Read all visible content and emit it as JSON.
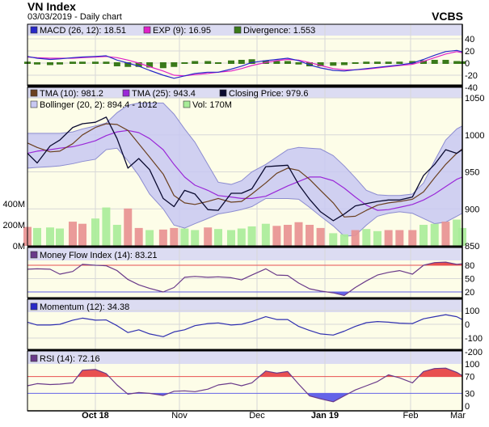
{
  "header": {
    "title": "VN Index",
    "subtitle": "03/03/2019 - Daily chart",
    "brand": "VCBS"
  },
  "colors": {
    "header_band": "#dcdcf2",
    "plot_bg": "#fdfde8",
    "macd": "#2828c8",
    "exp": "#e020c8",
    "divergence": "#3a7a1a",
    "tma10": "#6b4020",
    "tma25": "#9a28d8",
    "close": "#0a0a30",
    "bollinger_fill": "#c8c8f2",
    "bollinger_line": "#8c8cd0",
    "vol_up": "#a8ec98",
    "vol_down": "#e89090",
    "overbought": "#e85050",
    "oversold": "#6464e8",
    "indicator_line": "#6a3a8a",
    "momentum": "#3030b0"
  },
  "legends": {
    "macd": [
      "MACD (26, 12): 18.51",
      "EXP (9): 16.95",
      "Divergence: 1.553"
    ],
    "main_row1": [
      "TMA (10): 981.2",
      "TMA (25): 943.4",
      "Closing Price: 979.6"
    ],
    "main_row2": [
      "Bollinger (20, 2): 894.4 - 1012",
      "Vol: 170M"
    ],
    "mfi": "Money Flow Index (14): 83.21",
    "momentum": "Momentum (12): 34.38",
    "rsi": "RSI (14): 72.16"
  },
  "axes": {
    "macd_ticks": [
      "40",
      "20",
      "0",
      "-20",
      "-40"
    ],
    "price_ticks": [
      "1050",
      "1000",
      "950",
      "900",
      "850"
    ],
    "volume_ticks": [
      "400M",
      "200M",
      "0M"
    ],
    "mfi_ticks": [
      "80",
      "50",
      "20"
    ],
    "momentum_ticks": [
      "100",
      "0",
      "-100",
      "-200"
    ],
    "rsi_ticks": [
      "100",
      "70",
      "30",
      "0"
    ],
    "x_labels": [
      "Oct 18",
      "Nov",
      "Dec",
      "Jan 19",
      "Feb",
      "Mar"
    ]
  },
  "chart_data": {
    "type": "line",
    "dates": [
      "2018-09-10",
      "2018-09-13",
      "2018-09-17",
      "2018-09-20",
      "2018-09-24",
      "2018-09-27",
      "2018-10-01",
      "2018-10-05",
      "2018-10-09",
      "2018-10-13",
      "2018-10-17",
      "2018-10-21",
      "2018-10-26",
      "2018-10-30",
      "2018-11-03",
      "2018-11-07",
      "2018-11-12",
      "2018-11-16",
      "2018-11-21",
      "2018-11-25",
      "2018-11-29",
      "2018-12-05",
      "2018-12-10",
      "2018-12-15",
      "2018-12-20",
      "2018-12-25",
      "2018-12-30",
      "2019-01-04",
      "2019-01-08",
      "2019-01-12",
      "2019-01-16",
      "2019-01-20",
      "2019-01-24",
      "2019-01-28",
      "2019-02-02",
      "2019-02-08",
      "2019-02-14",
      "2019-02-20",
      "2019-02-26",
      "2019-03-01"
    ],
    "x_ticks": [
      "2018-10-01",
      "2018-11-01",
      "2018-12-01",
      "2019-01-01",
      "2019-02-01",
      "2019-03-01"
    ],
    "price": {
      "range": [
        850,
        1050
      ],
      "close": [
        975,
        962,
        985,
        993,
        1010,
        1015,
        1017,
        1024,
        995,
        955,
        968,
        953,
        914,
        903,
        925,
        920,
        899,
        898,
        921,
        921,
        927,
        957,
        958,
        959,
        933,
        913,
        896,
        884,
        893,
        904,
        907,
        910,
        912,
        912,
        916,
        945,
        960,
        980,
        975,
        980
      ],
      "tma10": [
        989,
        983,
        977,
        978,
        988,
        1000,
        1010,
        1015,
        1014,
        1006,
        988,
        970,
        947,
        918,
        908,
        906,
        910,
        914,
        909,
        910,
        920,
        935,
        948,
        955,
        952,
        940,
        925,
        908,
        889,
        890,
        898,
        905,
        908,
        910,
        913,
        923,
        942,
        960,
        975,
        981
      ],
      "tma25": [
        975,
        978,
        980,
        982,
        984,
        987,
        992,
        999,
        1004,
        1006,
        1003,
        995,
        980,
        960,
        943,
        932,
        925,
        918,
        916,
        914,
        914,
        917,
        924,
        931,
        937,
        943,
        943,
        938,
        928,
        916,
        905,
        898,
        899,
        902,
        906,
        912,
        920,
        930,
        940,
        943
      ],
      "bollinger_upper": [
        1002,
        1002,
        1002,
        1002,
        1004,
        1008,
        1012,
        1016,
        1030,
        1040,
        1043,
        1043,
        1043,
        1028,
        1008,
        990,
        960,
        936,
        933,
        938,
        950,
        960,
        970,
        980,
        983,
        982,
        981,
        972,
        958,
        942,
        925,
        919,
        918,
        918,
        920,
        935,
        965,
        993,
        1008,
        1012
      ],
      "bollinger_lower": [
        955,
        956,
        957,
        958,
        961,
        964,
        967,
        980,
        982,
        965,
        945,
        920,
        900,
        878,
        874,
        880,
        887,
        893,
        896,
        899,
        903,
        914,
        914,
        914,
        913,
        902,
        890,
        877,
        863,
        864,
        878,
        890,
        894,
        896,
        894,
        887,
        880,
        882,
        890,
        894
      ]
    },
    "volume": {
      "unit": "M",
      "values": [
        180,
        170,
        175,
        165,
        230,
        210,
        260,
        365,
        200,
        355,
        170,
        150,
        155,
        170,
        165,
        150,
        175,
        160,
        150,
        165,
        185,
        210,
        190,
        200,
        225,
        200,
        170,
        120,
        110,
        150,
        160,
        140,
        150,
        150,
        150,
        200,
        210,
        230,
        250,
        170
      ],
      "direction": [
        "down",
        "up",
        "up",
        "up",
        "down",
        "down",
        "up",
        "up",
        "up",
        "down",
        "down",
        "up",
        "down",
        "down",
        "up",
        "up",
        "down",
        "up",
        "up",
        "up",
        "up",
        "up",
        "down",
        "down",
        "down",
        "down",
        "down",
        "up",
        "up",
        "down",
        "up",
        "up",
        "down",
        "down",
        "down",
        "up",
        "up",
        "down",
        "up",
        "up"
      ]
    },
    "macd": {
      "range": [
        -40,
        40
      ],
      "macd": [
        11,
        8,
        6,
        7,
        9,
        10,
        11,
        12,
        5,
        0,
        -5,
        -12,
        -20,
        -25,
        -21,
        -17,
        -15,
        -15,
        -10,
        -5,
        1,
        4,
        6,
        8,
        4,
        -3,
        -8,
        -12,
        -13,
        -11,
        -9,
        -7,
        -5,
        -3,
        0,
        6,
        13,
        19,
        21,
        18.51
      ],
      "exp": [
        10,
        9,
        8,
        8,
        8,
        9,
        10,
        11,
        9,
        5,
        0,
        -6,
        -13,
        -20,
        -21,
        -19,
        -17,
        -15,
        -13,
        -9,
        -4,
        1,
        4,
        6,
        5,
        1,
        -4,
        -9,
        -11,
        -11,
        -10,
        -8,
        -6,
        -4,
        -2,
        3,
        9,
        15,
        19,
        16.95
      ],
      "divergence": [
        1,
        -1,
        -2,
        -1,
        1,
        1,
        1,
        1,
        -4,
        -5,
        -5,
        -6,
        -7,
        -5,
        0,
        2,
        2,
        0,
        3,
        4,
        5,
        3,
        2,
        2,
        -1,
        -4,
        -4,
        -3,
        -2,
        0,
        1,
        1,
        1,
        1,
        2,
        3,
        4,
        4,
        2,
        1.553
      ]
    },
    "mfi": {
      "overbought": 80,
      "oversold": 20,
      "values": [
        71,
        72,
        71,
        60,
        66,
        82,
        80,
        79,
        68,
        48,
        36,
        28,
        20,
        30,
        53,
        55,
        53,
        54,
        52,
        47,
        58,
        72,
        58,
        57,
        40,
        27,
        22,
        18,
        12,
        30,
        45,
        58,
        64,
        68,
        60,
        80,
        86,
        87,
        82,
        83.21
      ]
    },
    "momentum": {
      "range": [
        -200,
        100
      ],
      "values": [
        15,
        -5,
        -5,
        0,
        30,
        45,
        30,
        32,
        -10,
        -60,
        -40,
        -70,
        -90,
        -55,
        -40,
        -10,
        5,
        10,
        -5,
        0,
        20,
        55,
        35,
        35,
        -15,
        -45,
        -70,
        -78,
        -50,
        -15,
        12,
        20,
        15,
        8,
        5,
        40,
        55,
        70,
        55,
        34.38
      ]
    },
    "rsi": {
      "overbought": 70,
      "oversold": 30,
      "range": [
        0,
        100
      ],
      "values": [
        48,
        53,
        51,
        52,
        55,
        85,
        87,
        77,
        50,
        28,
        32,
        30,
        25,
        35,
        36,
        34,
        40,
        50,
        54,
        48,
        55,
        83,
        78,
        82,
        52,
        24,
        17,
        10,
        24,
        38,
        48,
        58,
        74,
        67,
        55,
        82,
        89,
        90,
        80,
        72.16
      ]
    }
  }
}
